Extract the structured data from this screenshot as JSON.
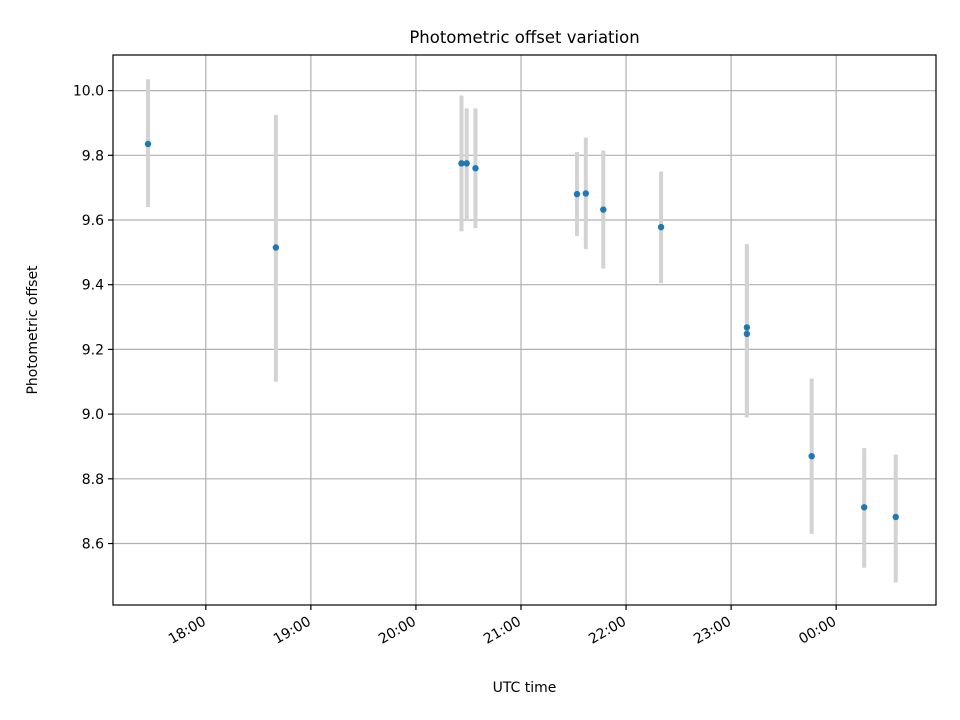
{
  "chart_data": {
    "type": "scatter",
    "title": "Photometric offset variation",
    "xlabel": "UTC time",
    "ylabel": "Photometric offset",
    "x_kind": "time",
    "xlim": [
      "17:07",
      "00:57"
    ],
    "ylim": [
      8.41,
      10.11
    ],
    "x_ticks": [
      "18:00",
      "19:00",
      "20:00",
      "21:00",
      "22:00",
      "23:00",
      "00:00"
    ],
    "y_ticks": [
      "8.6",
      "8.8",
      "9.0",
      "9.2",
      "9.4",
      "9.6",
      "9.8",
      "10.0"
    ],
    "grid": true,
    "colors": {
      "point": "#1f77b4",
      "errorbar": "#d3d3d3",
      "grid": "#b0b0b0"
    },
    "series": [
      {
        "points": [
          {
            "x": "17:27",
            "y": 9.835,
            "y_low": 9.64,
            "y_high": 10.035
          },
          {
            "x": "18:40",
            "y": 9.515,
            "y_low": 9.1,
            "y_high": 9.925
          },
          {
            "x": "20:26",
            "y": 9.775,
            "y_low": 9.565,
            "y_high": 9.985
          },
          {
            "x": "20:29",
            "y": 9.775,
            "y_low": 9.6,
            "y_high": 9.945
          },
          {
            "x": "20:34",
            "y": 9.76,
            "y_low": 9.575,
            "y_high": 9.945
          },
          {
            "x": "21:32",
            "y": 9.68,
            "y_low": 9.55,
            "y_high": 9.81
          },
          {
            "x": "21:37",
            "y": 9.682,
            "y_low": 9.51,
            "y_high": 9.855
          },
          {
            "x": "21:47",
            "y": 9.632,
            "y_low": 9.45,
            "y_high": 9.815
          },
          {
            "x": "22:20",
            "y": 9.578,
            "y_low": 9.405,
            "y_high": 9.75
          },
          {
            "x": "23:09",
            "y": 9.268,
            "y_low": 8.99,
            "y_high": 9.525
          },
          {
            "x": "23:09",
            "y": 9.248,
            "y_low": 8.99,
            "y_high": 9.525
          },
          {
            "x": "23:46",
            "y": 8.87,
            "y_low": 8.63,
            "y_high": 9.11
          },
          {
            "x": "00:16",
            "y": 8.712,
            "y_low": 8.525,
            "y_high": 8.895
          },
          {
            "x": "00:34",
            "y": 8.682,
            "y_low": 8.48,
            "y_high": 8.875
          }
        ]
      }
    ]
  }
}
